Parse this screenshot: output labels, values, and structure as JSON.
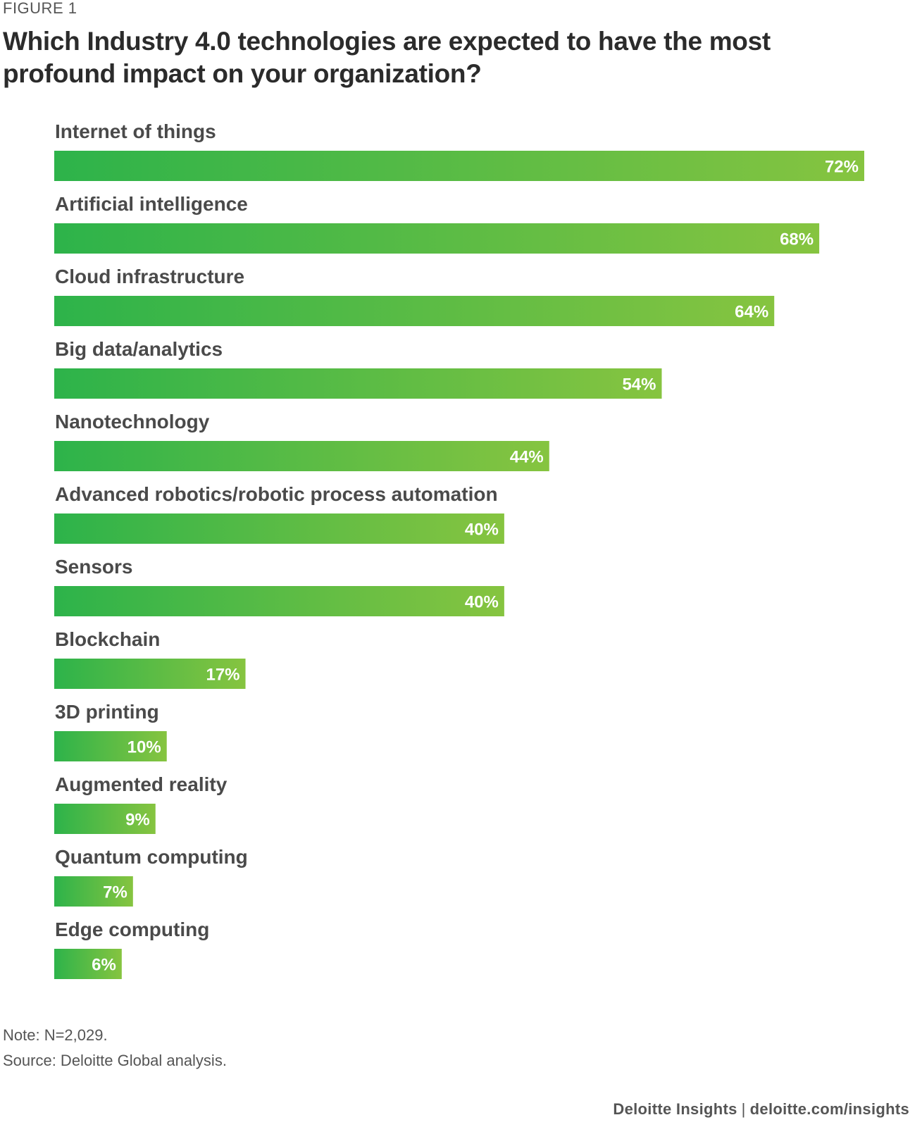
{
  "figure_label": "FIGURE 1",
  "title": "Which Industry 4.0 technologies are expected to have the most profound impact on your organization?",
  "chart_data": {
    "type": "bar",
    "orientation": "horizontal",
    "categories": [
      "Internet of things",
      "Artificial intelligence",
      "Cloud infrastructure",
      "Big data/analytics",
      "Nanotechnology",
      "Advanced robotics/robotic process automation",
      "Sensors",
      "Blockchain",
      "3D printing",
      "Augmented reality",
      "Quantum computing",
      "Edge computing"
    ],
    "values": [
      72,
      68,
      64,
      54,
      44,
      40,
      40,
      17,
      10,
      9,
      7,
      6
    ],
    "value_labels": [
      "72%",
      "68%",
      "64%",
      "54%",
      "44%",
      "40%",
      "40%",
      "17%",
      "10%",
      "9%",
      "7%",
      "6%"
    ],
    "unit": "%",
    "xlim": [
      0,
      72
    ],
    "grid": false,
    "colors": {
      "bar_start": "#2db34a",
      "bar_end": "#86c440",
      "label_text": "#4a4a4a",
      "value_text": "#ffffff"
    }
  },
  "notes": {
    "note": "Note: N=2,029.",
    "source": "Source: Deloitte Global analysis."
  },
  "footer": {
    "brand": "Deloitte Insights",
    "separator": "|",
    "url": "deloitte.com/insights"
  }
}
